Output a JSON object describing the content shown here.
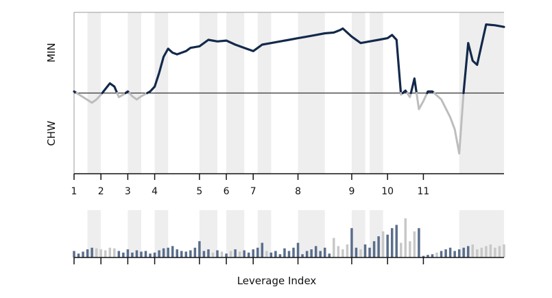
{
  "chart_data": {
    "type": "line",
    "title": "",
    "xlabel": "Leverage Index",
    "ylabel_top": "MIN",
    "ylabel_bottom": "CHW",
    "x_ticks": [
      "1",
      "2",
      "3",
      "4",
      "5",
      "6",
      "7",
      "8",
      "9",
      "10",
      "11"
    ],
    "x_tick_positions": [
      1,
      4,
      7,
      10,
      15,
      18,
      21,
      26,
      32,
      36,
      40
    ],
    "xlim": [
      1,
      49
    ],
    "ylim": [
      -1,
      1
    ],
    "zero_line": 0,
    "shaded_bands": [
      [
        2.5,
        4
      ],
      [
        7,
        8.5
      ],
      [
        10,
        11.5
      ],
      [
        15,
        17
      ],
      [
        18,
        20
      ],
      [
        21.5,
        23
      ],
      [
        26,
        29
      ],
      [
        32,
        33.5
      ],
      [
        34,
        35.5
      ],
      [
        44,
        49
      ]
    ],
    "colors": {
      "positive": "#13294b",
      "negative": "#bdbdbd",
      "band": "#eeeeee",
      "zero_line": "#333333",
      "axis": "#111111"
    },
    "series": [
      {
        "x": [
          1,
          2,
          3,
          3.5,
          4,
          4.5,
          5,
          5.5,
          6,
          6.5,
          7,
          7.5,
          8,
          8.5,
          9,
          9.5,
          10,
          10.5,
          11,
          11.5,
          12,
          12.5,
          13,
          13.5,
          14,
          15,
          16,
          17,
          18,
          19,
          20,
          21,
          22,
          23,
          24,
          25,
          26,
          27,
          28,
          29,
          30,
          30.7,
          31,
          31.5,
          32,
          33,
          34,
          35,
          36,
          36.5,
          37,
          37.5,
          38,
          38.5,
          39,
          39.5,
          40,
          40.5,
          41,
          42,
          43,
          43.5,
          44,
          44.5,
          45,
          45.5,
          46,
          47,
          48,
          49
        ],
        "values": [
          0.02,
          -0.05,
          -0.12,
          -0.08,
          -0.02,
          0.05,
          0.12,
          0.08,
          -0.05,
          -0.02,
          0.02,
          -0.04,
          -0.08,
          -0.04,
          -0.01,
          0.02,
          0.08,
          0.25,
          0.45,
          0.55,
          0.5,
          0.48,
          0.5,
          0.52,
          0.56,
          0.58,
          0.66,
          0.64,
          0.65,
          0.6,
          0.56,
          0.52,
          0.6,
          0.62,
          0.64,
          0.66,
          0.68,
          0.7,
          0.72,
          0.74,
          0.75,
          0.78,
          0.8,
          0.75,
          0.7,
          0.62,
          0.64,
          0.66,
          0.68,
          0.72,
          0.66,
          -0.02,
          0.03,
          -0.05,
          0.18,
          -0.2,
          -0.1,
          0.02,
          0.02,
          -0.08,
          -0.3,
          -0.45,
          -0.75,
          0.02,
          0.62,
          0.4,
          0.35,
          0.85,
          0.84,
          0.82
        ]
      }
    ],
    "bars": {
      "x": [
        1,
        1.5,
        2,
        2.5,
        3,
        3.5,
        4,
        4.5,
        5,
        5.5,
        6,
        6.5,
        7,
        7.5,
        8,
        8.5,
        9,
        9.5,
        10,
        10.5,
        11,
        11.5,
        12,
        12.5,
        13,
        13.5,
        14,
        14.5,
        15,
        15.5,
        16,
        16.5,
        17,
        17.5,
        18,
        18.5,
        19,
        19.5,
        20,
        20.5,
        21,
        21.5,
        22,
        22.5,
        23,
        23.5,
        24,
        24.5,
        25,
        25.5,
        26,
        26.5,
        27,
        27.5,
        28,
        28.5,
        29,
        29.5,
        30,
        30.5,
        31,
        31.5,
        32,
        32.5,
        33,
        33.5,
        34,
        34.5,
        35,
        35.5,
        36,
        36.5,
        37,
        37.5,
        38,
        38.5,
        39,
        39.5,
        40,
        40.5,
        41,
        41.5,
        42,
        42.5,
        43,
        43.5,
        44,
        44.5,
        45,
        45.5,
        46,
        46.5,
        47,
        47.5,
        48,
        48.5,
        49
      ],
      "values": [
        0.2,
        0.12,
        0.18,
        0.25,
        0.3,
        0.28,
        0.25,
        0.22,
        0.3,
        0.28,
        0.2,
        0.15,
        0.25,
        0.15,
        0.22,
        0.18,
        0.2,
        0.12,
        0.15,
        0.22,
        0.28,
        0.3,
        0.35,
        0.25,
        0.2,
        0.18,
        0.22,
        0.3,
        0.5,
        0.2,
        0.25,
        0.15,
        0.22,
        0.18,
        0.12,
        0.2,
        0.25,
        0.18,
        0.22,
        0.15,
        0.25,
        0.3,
        0.45,
        0.2,
        0.15,
        0.2,
        0.1,
        0.28,
        0.2,
        0.3,
        0.45,
        0.1,
        0.2,
        0.25,
        0.35,
        0.2,
        0.3,
        0.12,
        0.6,
        0.35,
        0.25,
        0.4,
        0.9,
        0.3,
        0.25,
        0.4,
        0.3,
        0.5,
        0.65,
        0.8,
        0.7,
        0.9,
        1.0,
        0.45,
        1.2,
        0.5,
        0.8,
        0.9,
        0.05,
        0.08,
        0.1,
        0.15,
        0.2,
        0.25,
        0.3,
        0.2,
        0.25,
        0.3,
        0.35,
        0.4,
        0.25,
        0.3,
        0.35,
        0.4,
        0.3,
        0.35,
        0.4
      ],
      "signs": [
        1,
        1,
        1,
        1,
        1,
        -1,
        -1,
        -1,
        -1,
        -1,
        1,
        1,
        1,
        1,
        1,
        1,
        1,
        1,
        1,
        1,
        1,
        1,
        1,
        1,
        1,
        1,
        1,
        1,
        1,
        1,
        1,
        -1,
        1,
        -1,
        1,
        -1,
        1,
        -1,
        1,
        1,
        1,
        1,
        1,
        -1,
        1,
        1,
        1,
        1,
        1,
        1,
        1,
        1,
        1,
        1,
        1,
        1,
        1,
        1,
        -1,
        -1,
        -1,
        -1,
        1,
        1,
        -1,
        1,
        1,
        1,
        1,
        -1,
        1,
        1,
        1,
        -1,
        -1,
        -1,
        -1,
        1,
        1,
        1,
        1,
        -1,
        1,
        1,
        1,
        1,
        1,
        1,
        1,
        -1,
        -1,
        -1,
        -1,
        -1,
        -1,
        -1
      ]
    }
  }
}
